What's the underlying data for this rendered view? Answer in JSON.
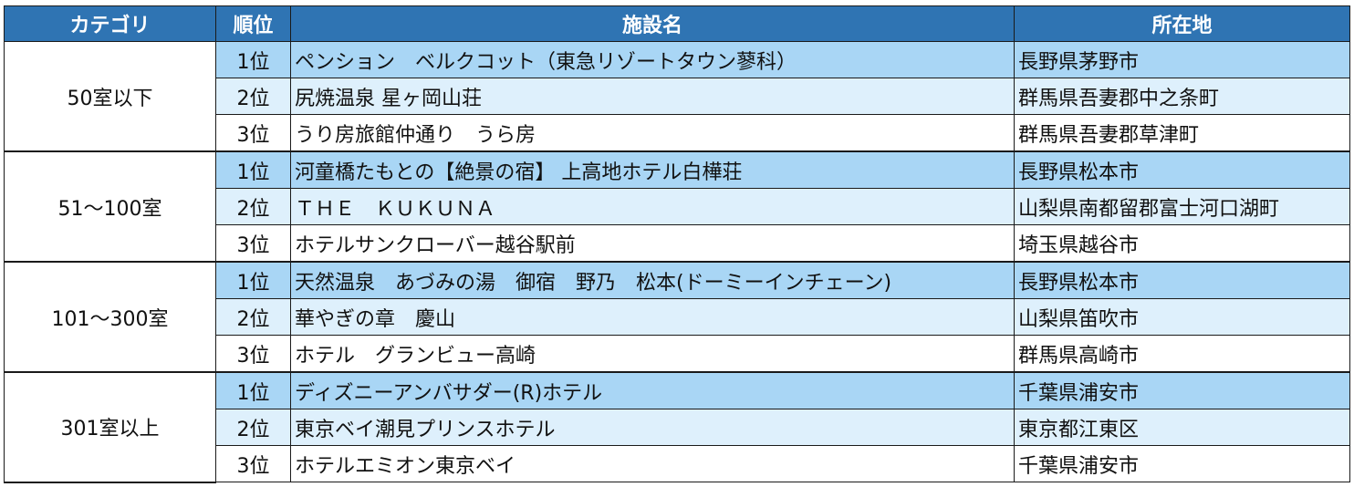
{
  "headers": {
    "category": "カテゴリ",
    "rank": "順位",
    "facility": "施設名",
    "location": "所在地"
  },
  "groups": [
    {
      "category": "50室以下",
      "rows": [
        {
          "rank": "1位",
          "facility": "ペンション　ベルクコット（東急リゾートタウン蓼科）",
          "location": "長野県茅野市"
        },
        {
          "rank": "2位",
          "facility": "尻焼温泉 星ヶ岡山荘",
          "location": "群馬県吾妻郡中之条町"
        },
        {
          "rank": "3位",
          "facility": "うり房旅館仲通り　うら房",
          "location": "群馬県吾妻郡草津町"
        }
      ]
    },
    {
      "category": "51～100室",
      "rows": [
        {
          "rank": "1位",
          "facility": "河童橋たもとの【絶景の宿】 上高地ホテル白樺荘",
          "location": "長野県松本市"
        },
        {
          "rank": "2位",
          "facility": "ＴＨＥ　ＫＵＫＵＮＡ",
          "location": "山梨県南都留郡富士河口湖町"
        },
        {
          "rank": "3位",
          "facility": "ホテルサンクローバー越谷駅前",
          "location": "埼玉県越谷市"
        }
      ]
    },
    {
      "category": "101～300室",
      "rows": [
        {
          "rank": "1位",
          "facility": "天然温泉　あづみの湯　御宿　野乃　松本(ドーミーインチェーン)",
          "location": "長野県松本市"
        },
        {
          "rank": "2位",
          "facility": "華やぎの章　慶山",
          "location": "山梨県笛吹市"
        },
        {
          "rank": "3位",
          "facility": "ホテル　グランビュー高崎",
          "location": "群馬県高崎市"
        }
      ]
    },
    {
      "category": "301室以上",
      "rows": [
        {
          "rank": "1位",
          "facility": "ディズニーアンバサダー(R)ホテル",
          "location": "千葉県浦安市"
        },
        {
          "rank": "2位",
          "facility": "東京ベイ潮見プリンスホテル",
          "location": "東京都江東区"
        },
        {
          "rank": "3位",
          "facility": "ホテルエミオン東京ベイ",
          "location": "千葉県浦安市"
        }
      ]
    }
  ]
}
